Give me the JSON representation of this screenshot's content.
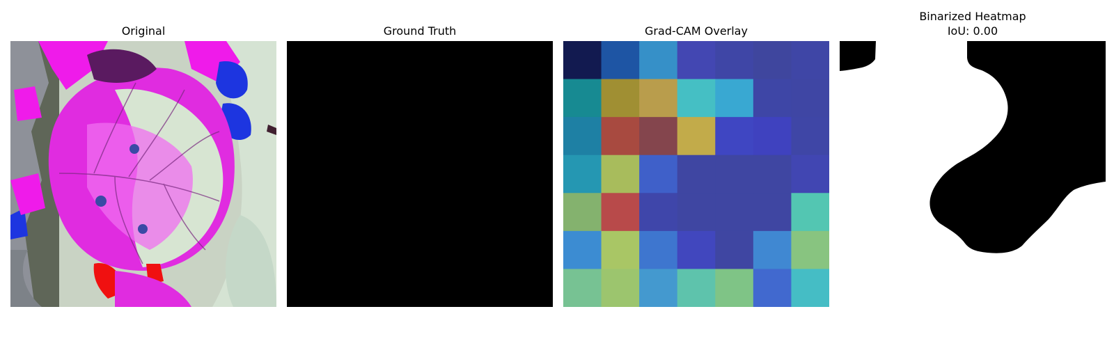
{
  "panels": [
    {
      "title": "Original"
    },
    {
      "title": "Ground Truth"
    },
    {
      "title": "Grad-CAM Overlay"
    },
    {
      "title": "Binarized Heatmap",
      "subtitle": "IoU: 0.00"
    }
  ],
  "gradcam_overlay": {
    "grid_rows": 7,
    "grid_cols": 7,
    "colors": [
      [
        "#121a50",
        "#1e55a4",
        "#3690c8",
        "#4347b2",
        "#3f46a6",
        "#3f469e",
        "#3f46a6"
      ],
      [
        "#178a92",
        "#a08f33",
        "#b99d4c",
        "#45bfc4",
        "#39a8d2",
        "#3e46a6",
        "#3f46a4"
      ],
      [
        "#1e80a4",
        "#a84a40",
        "#84454d",
        "#c2ab4a",
        "#3f46c2",
        "#3f42bf",
        "#3f46a6"
      ],
      [
        "#2597b2",
        "#a8bc5c",
        "#3f60c9",
        "#3f46a2",
        "#3f46a2",
        "#3f46a2",
        "#4146b2"
      ],
      [
        "#84b26e",
        "#b84a4a",
        "#3f46aa",
        "#3f46a2",
        "#3f46a2",
        "#3f46a2",
        "#53c6b2"
      ],
      [
        "#3c8cd2",
        "#a9c665",
        "#3e76cf",
        "#4147be",
        "#3f46a2",
        "#4088d2",
        "#88c480"
      ],
      [
        "#77c293",
        "#9cc56e",
        "#4499cf",
        "#5ec3ac",
        "#7fc486",
        "#4169cf",
        "#45bdc5"
      ]
    ]
  }
}
